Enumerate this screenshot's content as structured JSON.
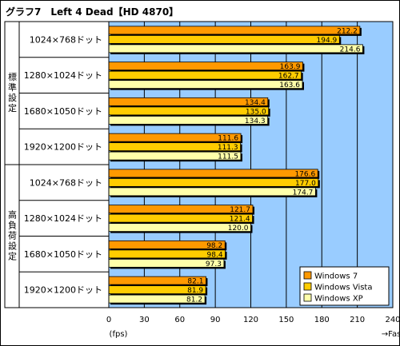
{
  "chart_data": {
    "type": "bar",
    "orientation": "horizontal",
    "title": "グラフ7　Left 4 Dead【HD 4870】",
    "groups": [
      {
        "label": "標準設定",
        "categories": [
          "1024×768ドット",
          "1280×1024ドット",
          "1680×1050ドット",
          "1920×1200ドット"
        ]
      },
      {
        "label": "高負荷設定",
        "categories": [
          "1024×768ドット",
          "1280×1024ドット",
          "1680×1050ドット",
          "1920×1200ドット"
        ]
      }
    ],
    "categories": [
      "1024×768ドット",
      "1280×1024ドット",
      "1680×1050ドット",
      "1920×1200ドット",
      "1024×768ドット",
      "1280×1024ドット",
      "1680×1050ドット",
      "1920×1200ドット"
    ],
    "series": [
      {
        "name": "Windows 7",
        "color": "#FF9900",
        "values": [
          212.2,
          163.9,
          134.4,
          111.6,
          176.6,
          121.7,
          98.2,
          82.1
        ]
      },
      {
        "name": "Windows Vista",
        "color": "#FFCC00",
        "values": [
          194.9,
          162.7,
          135.0,
          111.3,
          177.0,
          121.4,
          98.4,
          81.9
        ]
      },
      {
        "name": "Windows XP",
        "color": "#FFFFAA",
        "values": [
          214.6,
          163.6,
          134.3,
          111.5,
          174.7,
          120.0,
          97.3,
          81.2
        ]
      }
    ],
    "value_labels": [
      [
        "212.2",
        "163.9",
        "134.4",
        "111.6",
        "176.6",
        "121.7",
        "98.2",
        "82.1"
      ],
      [
        "194.9",
        "162.7",
        "135.0",
        "111.3",
        "177.0",
        "121.4",
        "98.4",
        "81.9"
      ],
      [
        "214.6",
        "163.6",
        "134.3",
        "111.5",
        "174.7",
        "120.0",
        "97.3",
        "81.2"
      ]
    ],
    "xlim": [
      0,
      240
    ],
    "xticks": [
      0,
      30,
      60,
      90,
      120,
      150,
      180,
      210,
      240
    ],
    "xunit": "(fps)",
    "xdirection": "→Fast",
    "grid": true,
    "legend_position": "bottom-right",
    "plot_background": "#99CCFF",
    "band_background": "#FFFFFF"
  }
}
